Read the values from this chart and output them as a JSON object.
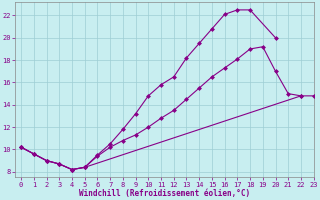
{
  "bg_color": "#c8eef0",
  "grid_color": "#9ecdd4",
  "line_color": "#880088",
  "xlabel": "Windchill (Refroidissement éolien,°C)",
  "xlim": [
    -0.5,
    23
  ],
  "ylim": [
    7.5,
    23.2
  ],
  "xticks": [
    0,
    1,
    2,
    3,
    4,
    5,
    6,
    7,
    8,
    9,
    10,
    11,
    12,
    13,
    14,
    15,
    16,
    17,
    18,
    19,
    20,
    21,
    22,
    23
  ],
  "yticks": [
    8,
    10,
    12,
    14,
    16,
    18,
    20,
    22
  ],
  "curve_top_x": [
    0,
    1,
    2,
    3,
    4,
    5,
    6,
    7,
    8,
    9,
    10,
    11,
    12,
    13,
    14,
    15,
    16,
    17,
    18,
    20
  ],
  "curve_top_y": [
    10.2,
    9.6,
    9.0,
    8.7,
    8.2,
    8.4,
    9.5,
    10.5,
    11.8,
    13.2,
    14.8,
    15.8,
    16.5,
    18.2,
    19.5,
    20.8,
    22.1,
    22.5,
    22.5,
    20.0
  ],
  "curve_mid_x": [
    0,
    1,
    2,
    3,
    4,
    5,
    6,
    7,
    8,
    9,
    10,
    11,
    12,
    13,
    14,
    15,
    16,
    17,
    18,
    19,
    20,
    21,
    22
  ],
  "curve_mid_y": [
    10.2,
    9.6,
    9.0,
    8.7,
    8.2,
    8.4,
    9.4,
    10.2,
    10.8,
    11.3,
    12.0,
    12.8,
    13.5,
    14.5,
    15.5,
    16.5,
    17.3,
    18.1,
    19.0,
    19.2,
    17.0,
    15.0,
    14.8
  ],
  "curve_bot_x": [
    0,
    1,
    2,
    3,
    4,
    5,
    22,
    23
  ],
  "curve_bot_y": [
    10.2,
    9.6,
    9.0,
    8.7,
    8.2,
    8.4,
    14.8,
    14.8
  ]
}
